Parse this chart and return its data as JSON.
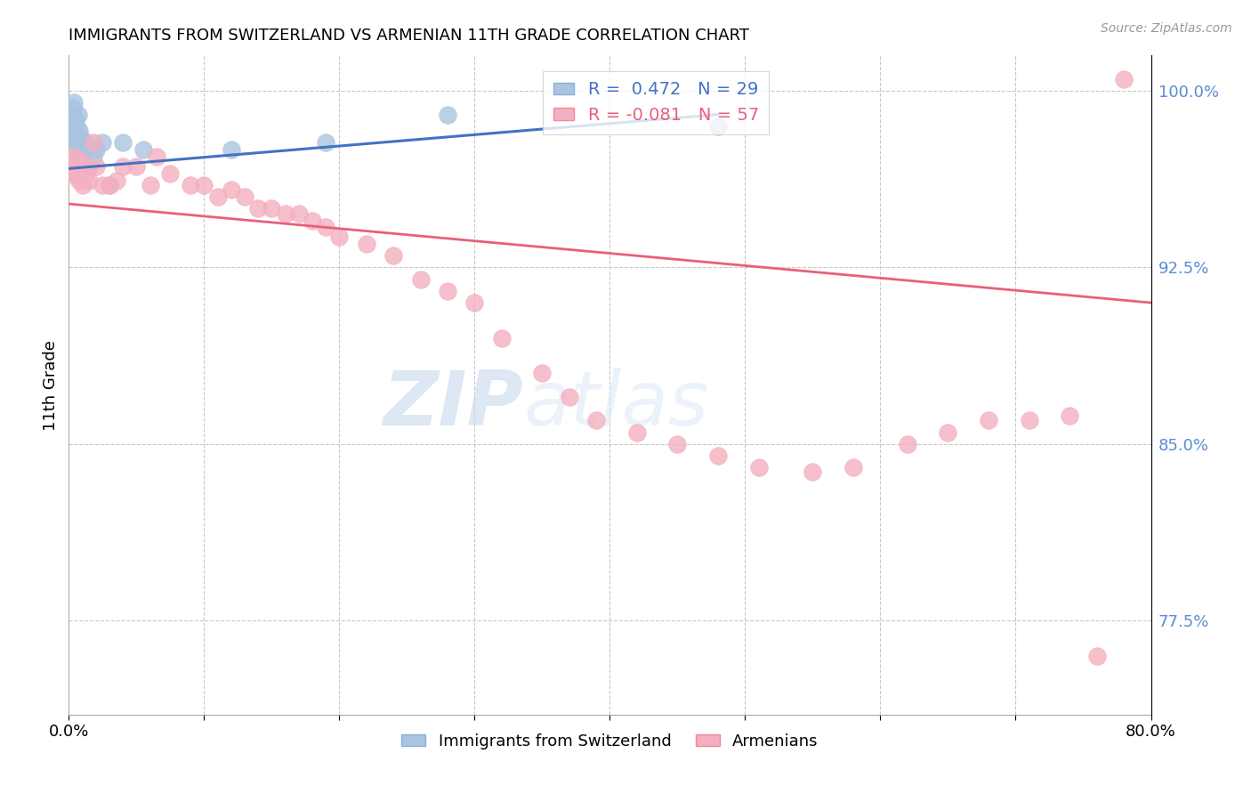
{
  "title": "IMMIGRANTS FROM SWITZERLAND VS ARMENIAN 11TH GRADE CORRELATION CHART",
  "source": "Source: ZipAtlas.com",
  "ylabel": "11th Grade",
  "y_tick_labels": [
    "100.0%",
    "92.5%",
    "85.0%",
    "77.5%"
  ],
  "y_tick_values": [
    1.0,
    0.925,
    0.85,
    0.775
  ],
  "xlim": [
    0.0,
    0.8
  ],
  "ylim": [
    0.735,
    1.015
  ],
  "blue_label": "Immigrants from Switzerland",
  "pink_label": "Armenians",
  "blue_R": 0.472,
  "blue_N": 29,
  "pink_R": -0.081,
  "pink_N": 57,
  "blue_color": "#aac4e0",
  "pink_color": "#f4afc0",
  "blue_line_color": "#4472c4",
  "pink_line_color": "#e8607a",
  "watermark_zip": "ZIP",
  "watermark_atlas": "atlas",
  "blue_x": [
    0.001,
    0.002,
    0.002,
    0.003,
    0.003,
    0.004,
    0.004,
    0.005,
    0.005,
    0.006,
    0.006,
    0.007,
    0.007,
    0.008,
    0.009,
    0.01,
    0.011,
    0.013,
    0.015,
    0.018,
    0.02,
    0.025,
    0.03,
    0.04,
    0.055,
    0.12,
    0.19,
    0.28,
    0.48
  ],
  "blue_y": [
    0.978,
    0.982,
    0.99,
    0.985,
    0.993,
    0.988,
    0.995,
    0.98,
    0.988,
    0.975,
    0.985,
    0.978,
    0.99,
    0.983,
    0.98,
    0.975,
    0.97,
    0.978,
    0.968,
    0.972,
    0.975,
    0.978,
    0.96,
    0.978,
    0.975,
    0.975,
    0.978,
    0.99,
    0.985
  ],
  "pink_x": [
    0.001,
    0.002,
    0.003,
    0.004,
    0.005,
    0.006,
    0.007,
    0.008,
    0.009,
    0.01,
    0.011,
    0.013,
    0.015,
    0.018,
    0.02,
    0.025,
    0.03,
    0.035,
    0.04,
    0.05,
    0.06,
    0.065,
    0.075,
    0.09,
    0.1,
    0.11,
    0.12,
    0.13,
    0.14,
    0.15,
    0.16,
    0.17,
    0.18,
    0.19,
    0.2,
    0.22,
    0.24,
    0.26,
    0.28,
    0.3,
    0.32,
    0.35,
    0.37,
    0.39,
    0.42,
    0.45,
    0.48,
    0.51,
    0.55,
    0.58,
    0.62,
    0.65,
    0.68,
    0.71,
    0.74,
    0.76,
    0.78
  ],
  "pink_y": [
    0.97,
    0.965,
    0.972,
    0.968,
    0.97,
    0.965,
    0.968,
    0.962,
    0.97,
    0.96,
    0.968,
    0.965,
    0.962,
    0.978,
    0.968,
    0.96,
    0.96,
    0.962,
    0.968,
    0.968,
    0.96,
    0.972,
    0.965,
    0.96,
    0.96,
    0.955,
    0.958,
    0.955,
    0.95,
    0.95,
    0.948,
    0.948,
    0.945,
    0.942,
    0.938,
    0.935,
    0.93,
    0.92,
    0.915,
    0.91,
    0.895,
    0.88,
    0.87,
    0.86,
    0.855,
    0.85,
    0.845,
    0.84,
    0.838,
    0.84,
    0.85,
    0.855,
    0.86,
    0.86,
    0.862,
    0.76,
    1.005
  ]
}
